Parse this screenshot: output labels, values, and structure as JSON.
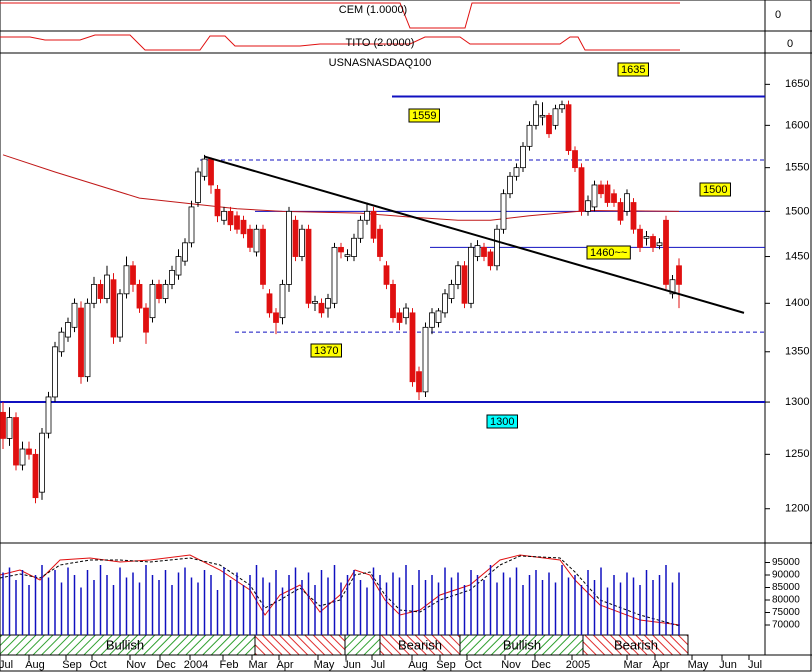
{
  "chart_data": {
    "type": "candlestick",
    "title": "USNASNASDAQ100",
    "log_scale": true,
    "ylim": [
      1181,
      1688
    ],
    "yticks": [
      1200,
      1250,
      1300,
      1350,
      1400,
      1450,
      1500,
      1550,
      1600,
      1650
    ],
    "up_color": "#ffffff",
    "down_color": "#e01010",
    "open": [
      1290,
      1265,
      1285,
      1240,
      1255,
      1250,
      1215,
      1270,
      1305,
      1350,
      1365,
      1375,
      1395,
      1325,
      1400,
      1420,
      1405,
      1425,
      1365,
      1410,
      1440,
      1420,
      1395,
      1385,
      1420,
      1405,
      1420,
      1430,
      1445,
      1465,
      1510,
      1540,
      1560,
      1525,
      1490,
      1500,
      1495,
      1490,
      1480,
      1455,
      1480,
      1410,
      1390,
      1385,
      1420,
      1490,
      1450,
      1480,
      1400,
      1400,
      1395,
      1400,
      1460,
      1450,
      1450,
      1470,
      1490,
      1500,
      1480,
      1440,
      1420,
      1390,
      1385,
      1390,
      1330,
      1310,
      1375,
      1380,
      1390,
      1405,
      1420,
      1440,
      1400,
      1450,
      1460,
      1455,
      1440,
      1480,
      1520,
      1540,
      1550,
      1575,
      1600,
      1610,
      1612,
      1600,
      1620,
      1625,
      1570,
      1550,
      1500,
      1505,
      1530,
      1530,
      1520,
      1510,
      1500,
      1510,
      1480,
      1470,
      1472,
      1462,
      1490,
      1410,
      1440
    ],
    "high": [
      1300,
      1295,
      1290,
      1262,
      1262,
      1255,
      1275,
      1310,
      1360,
      1375,
      1385,
      1405,
      1402,
      1405,
      1428,
      1425,
      1440,
      1432,
      1415,
      1450,
      1445,
      1425,
      1400,
      1425,
      1425,
      1425,
      1440,
      1458,
      1470,
      1512,
      1550,
      1565,
      1562,
      1530,
      1505,
      1505,
      1500,
      1495,
      1485,
      1485,
      1485,
      1415,
      1395,
      1425,
      1505,
      1495,
      1485,
      1485,
      1408,
      1405,
      1410,
      1465,
      1465,
      1458,
      1475,
      1495,
      1510,
      1505,
      1485,
      1445,
      1425,
      1395,
      1400,
      1395,
      1335,
      1380,
      1395,
      1395,
      1415,
      1425,
      1445,
      1445,
      1465,
      1468,
      1465,
      1458,
      1485,
      1525,
      1545,
      1555,
      1580,
      1605,
      1630,
      1628,
      1615,
      1625,
      1630,
      1630,
      1575,
      1555,
      1518,
      1535,
      1535,
      1535,
      1525,
      1515,
      1525,
      1515,
      1485,
      1478,
      1475,
      1470,
      1495,
      1430,
      1448
    ],
    "low": [
      1255,
      1258,
      1235,
      1235,
      1245,
      1205,
      1208,
      1265,
      1300,
      1345,
      1360,
      1370,
      1318,
      1320,
      1395,
      1400,
      1400,
      1358,
      1360,
      1405,
      1412,
      1390,
      1358,
      1380,
      1400,
      1400,
      1415,
      1425,
      1440,
      1460,
      1505,
      1535,
      1520,
      1488,
      1485,
      1478,
      1475,
      1470,
      1455,
      1450,
      1415,
      1385,
      1368,
      1378,
      1412,
      1445,
      1445,
      1395,
      1392,
      1385,
      1385,
      1395,
      1448,
      1445,
      1445,
      1465,
      1485,
      1465,
      1445,
      1415,
      1380,
      1372,
      1378,
      1315,
      1302,
      1305,
      1368,
      1375,
      1385,
      1400,
      1415,
      1395,
      1395,
      1445,
      1445,
      1435,
      1435,
      1475,
      1515,
      1535,
      1545,
      1570,
      1595,
      1600,
      1585,
      1595,
      1615,
      1565,
      1545,
      1495,
      1495,
      1500,
      1515,
      1505,
      1505,
      1485,
      1495,
      1475,
      1455,
      1462,
      1455,
      1458,
      1415,
      1405,
      1395
    ],
    "close": [
      1265,
      1285,
      1240,
      1255,
      1250,
      1210,
      1270,
      1305,
      1355,
      1370,
      1380,
      1400,
      1325,
      1400,
      1420,
      1405,
      1430,
      1365,
      1410,
      1440,
      1420,
      1395,
      1370,
      1420,
      1405,
      1420,
      1435,
      1450,
      1465,
      1505,
      1545,
      1560,
      1530,
      1495,
      1500,
      1485,
      1480,
      1475,
      1460,
      1480,
      1420,
      1390,
      1380,
      1420,
      1500,
      1450,
      1480,
      1400,
      1402,
      1390,
      1405,
      1460,
      1455,
      1452,
      1470,
      1490,
      1500,
      1470,
      1450,
      1420,
      1385,
      1380,
      1395,
      1320,
      1310,
      1375,
      1390,
      1392,
      1410,
      1420,
      1440,
      1400,
      1460,
      1462,
      1450,
      1440,
      1480,
      1520,
      1540,
      1550,
      1575,
      1600,
      1625,
      1612,
      1590,
      1620,
      1625,
      1570,
      1550,
      1500,
      1512,
      1530,
      1520,
      1510,
      1510,
      1490,
      1520,
      1480,
      1460,
      1472,
      1460,
      1465,
      1420,
      1425,
      1420
    ],
    "moving_average": {
      "color": "#c01818",
      "x": [
        0,
        8,
        21,
        36,
        43,
        55,
        62,
        70,
        75,
        81,
        90,
        104
      ],
      "values": [
        1565,
        1545,
        1515,
        1503,
        1500,
        1498,
        1494,
        1490,
        1490,
        1495,
        1501,
        1500
      ]
    },
    "trendline": {
      "x": [
        31,
        114
      ],
      "values": [
        1563,
        1390
      ],
      "color": "#000000"
    },
    "levels": [
      {
        "value": 1635,
        "label": "1635",
        "style": "solid",
        "box_color": "#ffff00"
      },
      {
        "value": 1559,
        "label": "1559",
        "style": "dashed",
        "box_color": "#ffff00"
      },
      {
        "value": 1500,
        "label": "1500",
        "style": "solid",
        "box_color": "#ffff00"
      },
      {
        "value": 1460,
        "label": "1460~~",
        "style": "solid",
        "box_color": "#ffff00"
      },
      {
        "value": 1370,
        "label": "1370",
        "style": "dashed",
        "box_color": "#ffff00"
      },
      {
        "value": 1300,
        "label": "1300",
        "style": "thick",
        "box_color": "#00ffff"
      }
    ],
    "volume": {
      "color": "#1010c0",
      "vlim": [
        66000,
        102000
      ],
      "ticks": [
        95000,
        90000,
        85000,
        80000,
        75000,
        70000
      ],
      "values": [
        91000,
        93000,
        88000,
        92000,
        86000,
        90000,
        94000,
        89000,
        92000,
        87000,
        93000,
        90000,
        85000,
        92000,
        88000,
        94000,
        90000,
        86000,
        93000,
        89000,
        91000,
        87000,
        94000,
        90000,
        88000,
        92000,
        86000,
        91000,
        93000,
        89000,
        87000,
        92000,
        90000,
        84000,
        93000,
        88000,
        91000,
        86000,
        90000,
        94000,
        89000,
        87000,
        92000,
        85000,
        90000,
        93000,
        88000,
        91000,
        86000,
        92000,
        89000,
        94000,
        87000,
        90000,
        92000,
        88000,
        85000,
        93000,
        90000,
        87000,
        91000,
        89000,
        94000,
        86000,
        92000,
        88000,
        90000,
        87000,
        93000,
        89000,
        91000,
        86000,
        92000,
        90000,
        88000,
        94000,
        87000,
        91000,
        89000,
        93000,
        86000,
        90000,
        92000,
        88000,
        91000,
        87000,
        94000,
        89000,
        90000,
        86000,
        92000,
        88000,
        93000,
        85000,
        90000,
        87000,
        91000,
        89000,
        86000,
        92000,
        88000,
        90000,
        94000,
        87000,
        91000
      ]
    },
    "panels": [
      {
        "title": "CEM (1.0000)",
        "ticks": [
          0
        ]
      },
      {
        "title": "TITO (2.0000)",
        "ticks": [
          0
        ]
      }
    ],
    "regimes": [
      "Bullish",
      "Bearish",
      "Bullish",
      "Bearish"
    ],
    "months": [
      "Jul",
      "Aug",
      "Sep",
      "Oct",
      "Nov",
      "Dec",
      "2004",
      "Feb",
      "Mar",
      "Apr",
      "May",
      "Jun",
      "Jul",
      "Aug",
      "Sep",
      "Oct",
      "Nov",
      "Dec",
      "2005",
      "Mar",
      "Apr",
      "May",
      "Jun",
      "Jul"
    ]
  }
}
